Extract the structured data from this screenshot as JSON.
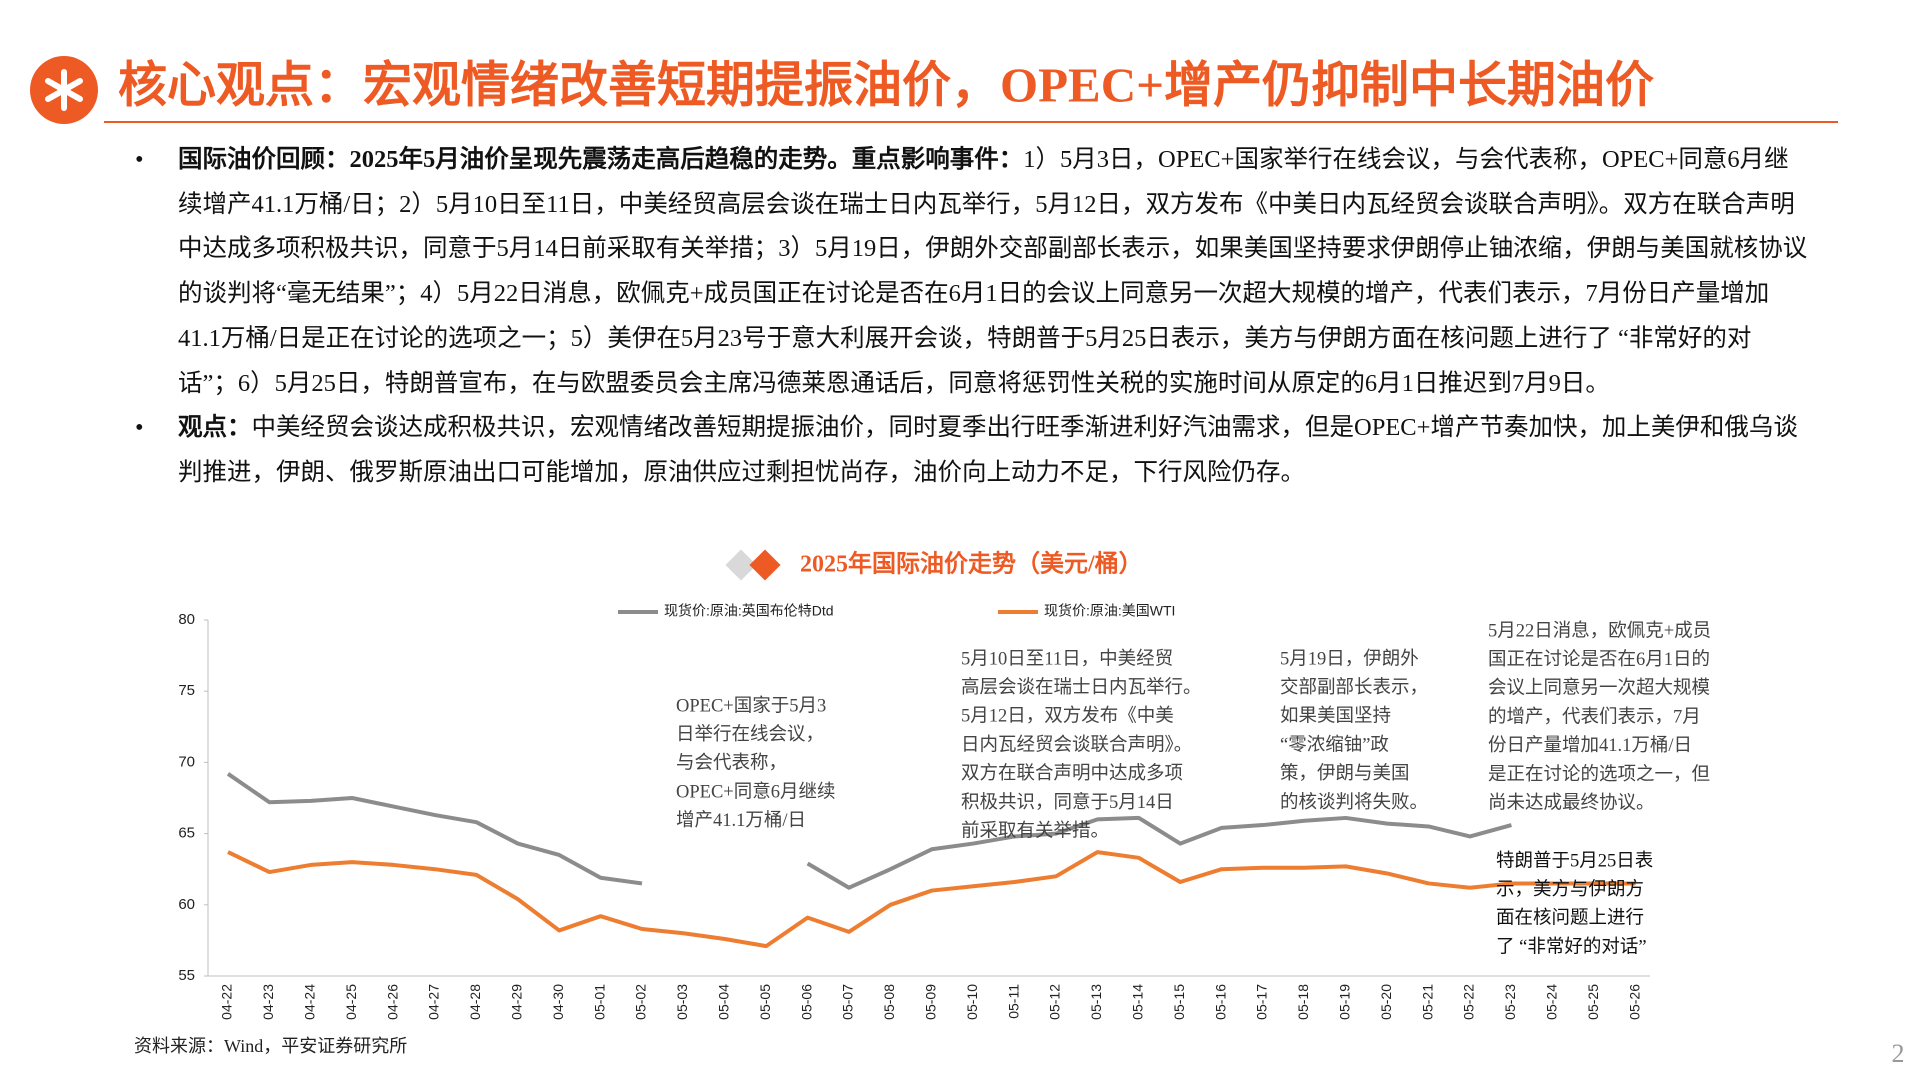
{
  "header": {
    "title": "核心观点：宏观情绪改善短期提振油价，OPEC+增产仍抑制中长期油价"
  },
  "bullets": [
    {
      "lead": "国际油价回顾：2025年5月油价呈现先震荡走高后趋稳的走势。重点影响事件：",
      "text": "1）5月3日，OPEC+国家举行在线会议，与会代表称，OPEC+同意6月继续增产41.1万桶/日；2）5月10日至11日，中美经贸高层会谈在瑞士日内瓦举行，5月12日，双方发布《中美日内瓦经贸会谈联合声明》。双方在联合声明中达成多项积极共识，同意于5月14日前采取有关举措；3）5月19日，伊朗外交部副部长表示，如果美国坚持要求伊朗停止铀浓缩，伊朗与美国就核协议的谈判将“毫无结果”；4）5月22日消息，欧佩克+成员国正在讨论是否在6月1日的会议上同意另一次超大规模的增产，代表们表示，7月份日产量增加41.1万桶/日是正在讨论的选项之一；5）美伊在5月23号于意大利展开会谈，特朗普于5月25日表示，美方与伊朗方面在核问题上进行了 “非常好的对话”；6）5月25日，特朗普宣布，在与欧盟委员会主席冯德莱恩通话后，同意将惩罚性关税的实施时间从原定的6月1日推迟到7月9日。"
    },
    {
      "lead": "观点：",
      "text": "中美经贸会谈达成积极共识，宏观情绪改善短期提振油价，同时夏季出行旺季渐进利好汽油需求，但是OPEC+增产节奏加快，加上美伊和俄乌谈判推进，伊朗、俄罗斯原油出口可能增加，原油供应过剩担忧尚存，油价向上动力不足，下行风险仍存。"
    }
  ],
  "chart_data": {
    "type": "line",
    "title": "2025年国际油价走势（美元/桶）",
    "categories": [
      "04-22",
      "04-23",
      "04-24",
      "04-25",
      "04-26",
      "04-27",
      "04-28",
      "04-29",
      "04-30",
      "05-01",
      "05-02",
      "05-03",
      "05-04",
      "05-05",
      "05-06",
      "05-07",
      "05-08",
      "05-09",
      "05-10",
      "05-11",
      "05-12",
      "05-13",
      "05-14",
      "05-15",
      "05-16",
      "05-17",
      "05-18",
      "05-19",
      "05-20",
      "05-21",
      "05-22",
      "05-23",
      "05-24",
      "05-25",
      "05-26"
    ],
    "series": [
      {
        "name": "现货价:原油:英国布伦特Dtd",
        "color": "#8c8c8c",
        "values": [
          69.2,
          67.2,
          67.3,
          67.5,
          66.9,
          66.3,
          65.8,
          64.3,
          63.5,
          61.9,
          61.5,
          null,
          null,
          null,
          62.9,
          61.2,
          62.5,
          63.9,
          64.3,
          64.8,
          65.0,
          66.0,
          66.1,
          64.3,
          65.4,
          65.6,
          65.9,
          66.1,
          65.7,
          65.5,
          64.8,
          65.6,
          null,
          null,
          null
        ]
      },
      {
        "name": "现货价:原油:美国WTI",
        "color": "#ed7d31",
        "values": [
          63.7,
          62.3,
          62.8,
          63.0,
          62.8,
          62.5,
          62.1,
          60.4,
          58.2,
          59.2,
          58.3,
          58.0,
          57.6,
          57.1,
          59.1,
          58.1,
          60.0,
          61.0,
          61.3,
          61.6,
          62.0,
          63.7,
          63.3,
          61.6,
          62.5,
          62.6,
          62.6,
          62.7,
          62.2,
          61.5,
          61.2,
          61.5,
          61.5,
          61.5,
          61.5
        ]
      }
    ],
    "ylim": [
      55,
      80
    ],
    "yticks": [
      55,
      60,
      65,
      70,
      75,
      80
    ],
    "grid": false,
    "annotations": [
      {
        "lines": [
          "OPEC+国家于5月3",
          "日举行在线会议，",
          "与会代表称，",
          "OPEC+同意6月继续",
          "增产41.1万桶/日"
        ]
      },
      {
        "lines": [
          "5月10日至11日，中美经贸",
          "高层会谈在瑞士日内瓦举行。",
          "5月12日，双方发布《中美",
          "日内瓦经贸会谈联合声明》。",
          "双方在联合声明中达成多项",
          "积极共识，同意于5月14日",
          "前采取有关举措。"
        ]
      },
      {
        "lines": [
          "5月19日，伊朗外",
          "交部副部长表示，",
          "如果美国坚持",
          "“零浓缩铀”政",
          "策，伊朗与美国",
          "的核谈判将失败。"
        ]
      },
      {
        "lines": [
          "5月22日消息，欧佩克+成员",
          "国正在讨论是否在6月1日的",
          "会议上同意另一次超大规模",
          "的增产，代表们表示，7月",
          "份日产量增加41.1万桶/日",
          "是正在讨论的选项之一，但",
          "尚未达成最终协议。"
        ]
      },
      {
        "lines": [
          "特朗普于5月25日表",
          "示，美方与伊朗方",
          "面在核问题上进行",
          "了 “非常好的对话”"
        ]
      }
    ],
    "source": "资料来源：Wind，平安证券研究所"
  },
  "page_number": "2"
}
